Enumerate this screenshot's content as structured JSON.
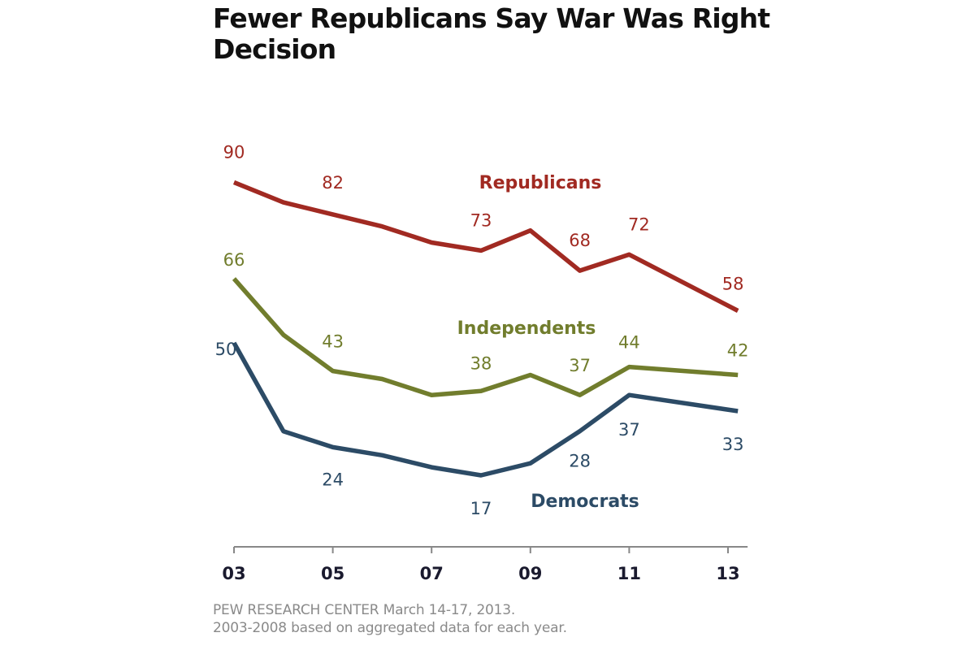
{
  "chart_data": {
    "type": "line",
    "title": "Fewer Republicans Say War Was Right Decision",
    "xlabel": "",
    "ylabel": "",
    "x_ticks": [
      "03",
      "05",
      "07",
      "09",
      "11",
      "13"
    ],
    "x_tick_values": [
      3,
      5,
      7,
      9,
      11,
      13
    ],
    "xlim": [
      3,
      13.2
    ],
    "ylim": [
      0,
      100
    ],
    "grid": false,
    "y_axis_visible": false,
    "x": [
      3,
      4,
      5,
      6,
      7,
      8,
      9,
      10,
      11,
      13.2
    ],
    "series": [
      {
        "name": "Republicans",
        "color": "#a12a22",
        "values": [
          90,
          85,
          82,
          79,
          75,
          73,
          78,
          68,
          72,
          58
        ],
        "labeled_points": [
          {
            "x": 3,
            "value": 90,
            "label": "90"
          },
          {
            "x": 5,
            "value": 82,
            "label": "82"
          },
          {
            "x": 8,
            "value": 73,
            "label": "73"
          },
          {
            "x": 10,
            "value": 68,
            "label": "68"
          },
          {
            "x": 11,
            "value": 72,
            "label": "72"
          },
          {
            "x": 13.2,
            "value": 58,
            "label": "58"
          }
        ]
      },
      {
        "name": "Independents",
        "color": "#717d2d",
        "values": [
          66,
          52,
          43,
          41,
          37,
          38,
          42,
          37,
          44,
          42
        ],
        "labeled_points": [
          {
            "x": 3,
            "value": 66,
            "label": "66"
          },
          {
            "x": 5,
            "value": 43,
            "label": "43"
          },
          {
            "x": 8,
            "value": 38,
            "label": "38"
          },
          {
            "x": 10,
            "value": 37,
            "label": "37"
          },
          {
            "x": 11,
            "value": 44,
            "label": "44"
          },
          {
            "x": 13.2,
            "value": 42,
            "label": "42"
          }
        ]
      },
      {
        "name": "Democrats",
        "color": "#2c4b66",
        "values": [
          50,
          28,
          24,
          22,
          19,
          17,
          20,
          28,
          37,
          33
        ],
        "labeled_points": [
          {
            "x": 3,
            "value": 50,
            "label": "50"
          },
          {
            "x": 5,
            "value": 24,
            "label": "24"
          },
          {
            "x": 8,
            "value": 17,
            "label": "17"
          },
          {
            "x": 10,
            "value": 28,
            "label": "28"
          },
          {
            "x": 11,
            "value": 37,
            "label": "37"
          },
          {
            "x": 13.2,
            "value": 33,
            "label": "33"
          }
        ]
      }
    ],
    "legend": "inline-labels",
    "source_lines": [
      "PEW RESEARCH  CENTER March 14-17, 2013.",
      "2003-2008 based on aggregated data for each year."
    ]
  },
  "colors": {
    "title": "#111111",
    "axis": "#888888",
    "tick_label": "#1a1a2e",
    "source": "#8a8a8a"
  }
}
